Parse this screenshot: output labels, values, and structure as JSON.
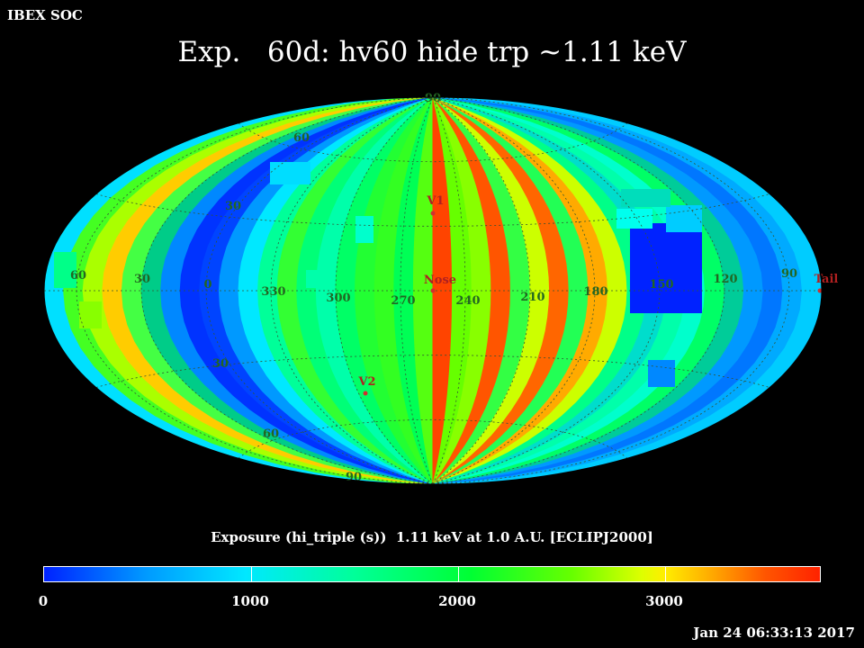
{
  "header": {
    "org": "IBEX SOC",
    "title": "Exp.   60d: hv60 hide trp ~1.11 keV"
  },
  "map": {
    "projection": "aitoff ecliptic",
    "grid": true,
    "longitude_labels": [
      "60",
      "30",
      "0",
      "330",
      "300",
      "270",
      "240",
      "210",
      "180",
      "150",
      "120",
      "90"
    ],
    "latitude_labels": [
      "90",
      "60",
      "30",
      "30",
      "60",
      "90"
    ],
    "markers": [
      {
        "name": "V1",
        "label": "V1",
        "lon": 255,
        "lat": 34,
        "color": "#d03030"
      },
      {
        "name": "Nose",
        "label": "Nose",
        "lon": 255,
        "lat": 5,
        "color": "#d03030"
      },
      {
        "name": "V2",
        "label": "V2",
        "lon": 289,
        "lat": -32,
        "color": "#d03030"
      },
      {
        "name": "Tail",
        "label": "Tail",
        "lon": 75,
        "lat": -5,
        "color": "#d03030"
      }
    ]
  },
  "colorbar": {
    "title": "Exposure (hi_triple (s))  1.11 keV at 1.0 A.U. [ECLIPJ2000]",
    "min": 0,
    "max": 3750,
    "ticks": [
      "0",
      "1000",
      "2000",
      "3000"
    ],
    "colors": [
      "#0022ff",
      "#0099ff",
      "#00e8ff",
      "#00ff99",
      "#00ff33",
      "#66ff00",
      "#ddff00",
      "#ffee00",
      "#ffaa00",
      "#ff5500",
      "#ff2200"
    ]
  },
  "timestamp": "Jan 24 06:33:13 2017"
}
